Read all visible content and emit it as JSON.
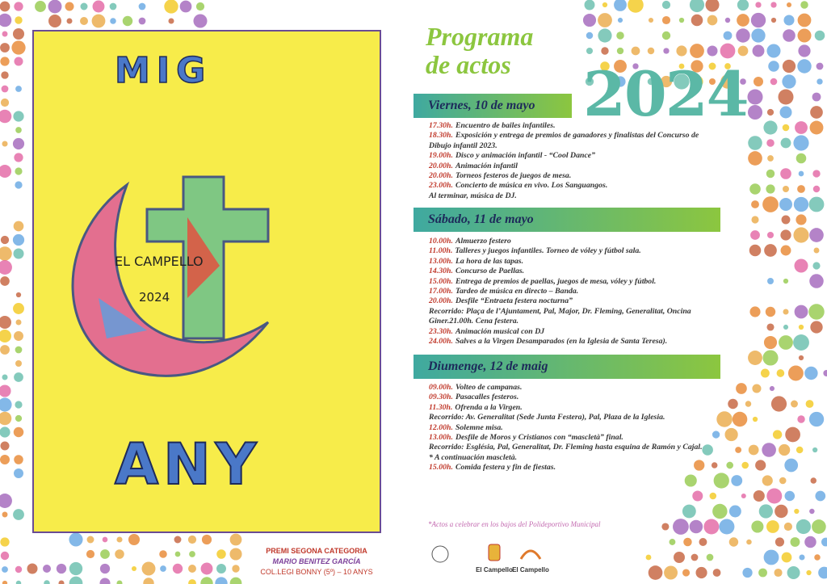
{
  "drawing": {
    "top_word": "MIG",
    "place": "EL CAMPELLO",
    "year": "2024",
    "bottom_word": "ANY"
  },
  "credit": {
    "prize": "PREMI SEGONA CATEGORIA",
    "author": "MARIO BENITEZ GARCÍA",
    "school": "COL.LEGI BONNY (5º) – 10 ANYS"
  },
  "header": {
    "title_line1": "Programa",
    "title_line2": "de actos",
    "year": "2024"
  },
  "days": [
    {
      "title": "Viernes, 10 de mayo",
      "items": [
        {
          "time": "17.30h.",
          "text": "Encuentro de bailes infantiles."
        },
        {
          "time": "18.30h.",
          "text": "Exposición y entrega de premios de ganadores y finalistas del Concurso de Dibujo infantil 2023."
        },
        {
          "time": "19.00h.",
          "text": "Disco y animación infantil - “Cool Dance”"
        },
        {
          "time": "20.00h.",
          "text": "Animación infantil"
        },
        {
          "time": "20.00h.",
          "text": "Torneos festeros de juegos de mesa."
        },
        {
          "time": "23.00h.",
          "text": "Concierto de música en vivo.  Los Sanguangos."
        },
        {
          "text": "Al terminar, música de DJ."
        }
      ]
    },
    {
      "title": "Sábado, 11 de mayo",
      "items": [
        {
          "time": "10.00h.",
          "text": "Almuerzo festero"
        },
        {
          "time": "11.00h.",
          "text": "Talleres y juegos infantiles. Torneo de vóley y fútbol sala."
        },
        {
          "time": "13.00h.",
          "text": "La hora de las tapas."
        },
        {
          "time": "14.30h.",
          "text": "Concurso de Paellas."
        },
        {
          "time": "15.00h.",
          "text": "Entrega de premios de paellas, juegos de mesa, vóley y fútbol."
        },
        {
          "time": "17.00h.",
          "text": "Tardeo de música en directo – Banda."
        },
        {
          "time": "20.00h.",
          "text": "Desfile “Entraeta festera nocturna”"
        },
        {
          "text": "Recorrido: Plaça de l’Ajuntament, Pal, Major, Dr. Fleming, Generalitat, Oncina Giner.21.00h. Cena festera."
        },
        {
          "time": "23.30h.",
          "text": "Animación musical con DJ"
        },
        {
          "time": "24.00h.",
          "text": "Salves a la Virgen Desamparados (en la Iglesia de Santa Teresa)."
        }
      ]
    },
    {
      "title": "Diumenge, 12 de maig",
      "items": [
        {
          "time": "09.00h.",
          "text": "Volteo de campanas."
        },
        {
          "time": "09.30h.",
          "text": "Pasacalles festeros."
        },
        {
          "time": "11.30h.",
          "text": "Ofrenda a la Virgen."
        },
        {
          "text": "Recorrido: Av. Generalitat (Sede Junta Festera), Pal, Plaza de la Iglesia."
        },
        {
          "time": "12.00h.",
          "text": "Solemne misa."
        },
        {
          "time": "13.00h.",
          "text": "Desfile de Moros y Cristianos con “mascletà” final."
        },
        {
          "text": "Recorrido: Església, Pal, Generalitat, Dr. Fleming hasta esquina de Ramón y Cajal."
        },
        {
          "text": "* A continuación mascletà."
        },
        {
          "time": "15.00h.",
          "text": "Comida festera y fin de fiestas."
        }
      ]
    }
  ],
  "footnote": "*Actos a celebrar en los bajos del Polideportivo Municipal",
  "logos": [
    "El Campello",
    "El Campello"
  ]
}
